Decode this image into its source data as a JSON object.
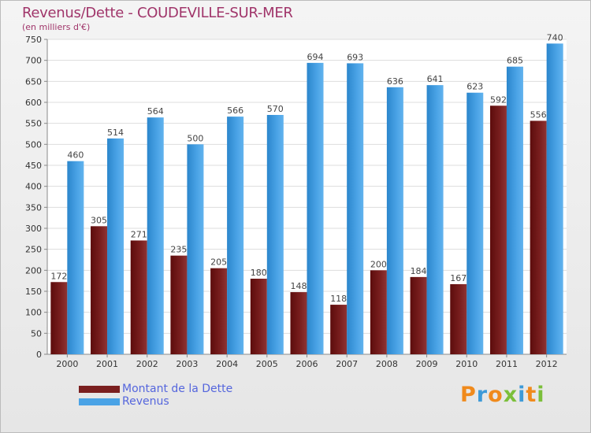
{
  "chart_data": {
    "type": "bar",
    "title": "Revenus/Dette - COUDEVILLE-SUR-MER",
    "subtitle": "(en milliers d'€)",
    "categories": [
      "2000",
      "2001",
      "2002",
      "2003",
      "2004",
      "2005",
      "2006",
      "2007",
      "2008",
      "2009",
      "2010",
      "2011",
      "2012"
    ],
    "series": [
      {
        "name": "Montant de la Dette",
        "color": "#7a1f1f",
        "values": [
          172,
          305,
          271,
          235,
          205,
          180,
          148,
          118,
          200,
          184,
          167,
          592,
          556
        ]
      },
      {
        "name": "Revenus",
        "color": "#4aa3e6",
        "values": [
          460,
          514,
          564,
          500,
          566,
          570,
          694,
          693,
          636,
          641,
          623,
          685,
          740
        ]
      }
    ],
    "ylim": [
      0,
      750
    ],
    "yticks": [
      0,
      50,
      100,
      150,
      200,
      250,
      300,
      350,
      400,
      450,
      500,
      550,
      600,
      650,
      700,
      750
    ],
    "grid": true,
    "legend_position": "bottom-left"
  },
  "logo": {
    "letters": [
      "P",
      "r",
      "o",
      "x",
      "i",
      "t",
      "i"
    ],
    "colors": [
      "#f08a1c",
      "#3d9ad8",
      "#f08a1c",
      "#7bbf3a",
      "#3d9ad8",
      "#f08a1c",
      "#7bbf3a"
    ]
  }
}
